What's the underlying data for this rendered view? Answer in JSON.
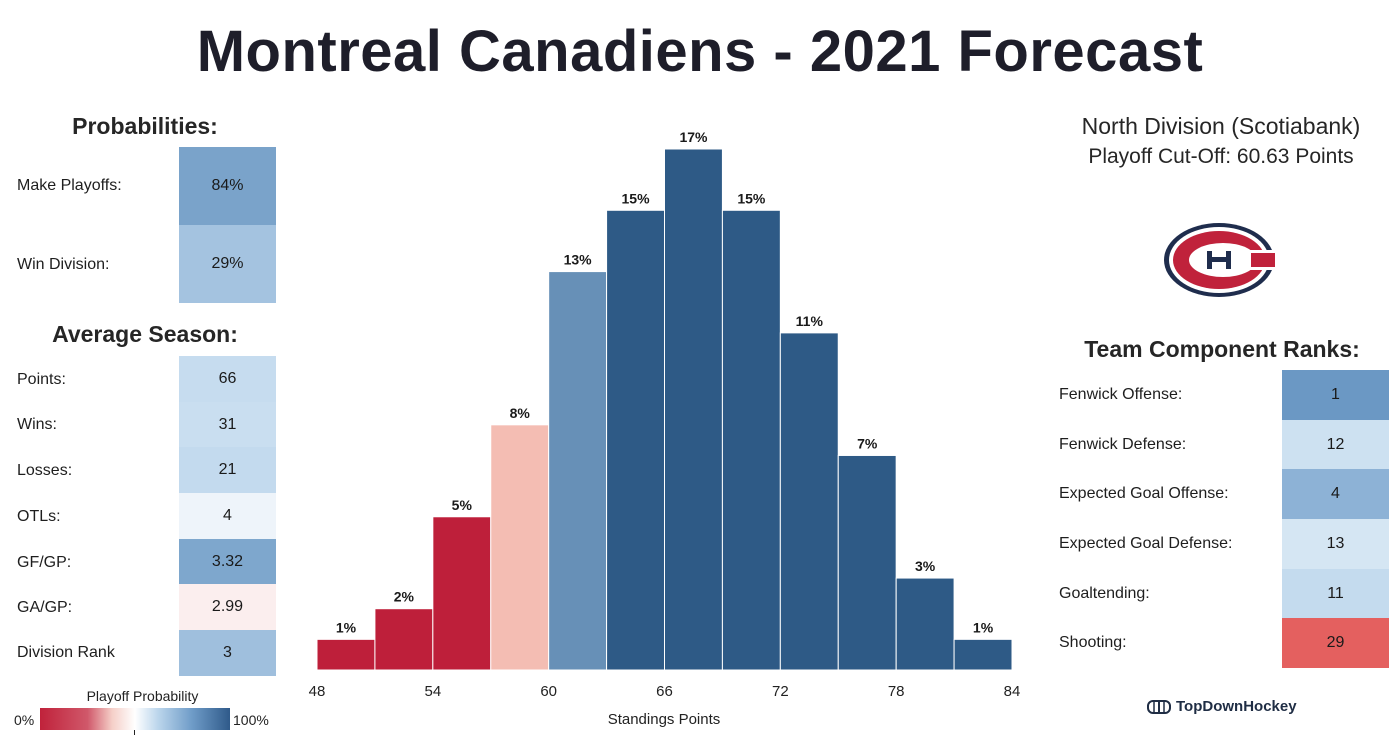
{
  "title": "Montreal Canadiens - 2021 Forecast",
  "probabilities": {
    "heading": "Probabilities:",
    "rows": [
      {
        "label": "Make Playoffs:",
        "value": "84%",
        "color": "#7aa3ca"
      },
      {
        "label": "Win Division:",
        "value": "29%",
        "color": "#a4c3e0"
      }
    ]
  },
  "average_season": {
    "heading": "Average Season:",
    "rows": [
      {
        "label": "Points:",
        "value": "66",
        "color": "#c6dcef"
      },
      {
        "label": "Wins:",
        "value": "31",
        "color": "#c9def0"
      },
      {
        "label": "Losses:",
        "value": "21",
        "color": "#c3daee"
      },
      {
        "label": "OTLs:",
        "value": "4",
        "color": "#eef4fa"
      },
      {
        "label": "GF/GP:",
        "value": "3.32",
        "color": "#7ea7cd"
      },
      {
        "label": "GA/GP:",
        "value": "2.99",
        "color": "#fbeeee"
      },
      {
        "label": "Division Rank",
        "value": "3",
        "color": "#9fbfdd"
      }
    ]
  },
  "legend": {
    "title": "Playoff Probability",
    "min_label": "0%",
    "max_label": "100%"
  },
  "division": {
    "name": "North Division (Scotiabank)",
    "cutoff": "Playoff Cut-Off: 60.63 Points"
  },
  "team_ranks": {
    "heading": "Team Component Ranks:",
    "rows": [
      {
        "label": "Fenwick Offense:",
        "value": "1",
        "color": "#6b98c4"
      },
      {
        "label": "Fenwick Defense:",
        "value": "12",
        "color": "#cde1f1"
      },
      {
        "label": "Expected Goal Offense:",
        "value": "4",
        "color": "#8db2d6"
      },
      {
        "label": "Expected Goal Defense:",
        "value": "13",
        "color": "#d5e6f3"
      },
      {
        "label": "Goaltending:",
        "value": "11",
        "color": "#c4dbee"
      },
      {
        "label": "Shooting:",
        "value": "29",
        "color": "#e4605f"
      }
    ]
  },
  "brand": "TopDownHockey",
  "chart_data": {
    "type": "bar",
    "title": "",
    "xlabel": "Standings Points",
    "ylabel": "",
    "bin_edges": [
      48,
      51,
      54,
      57,
      60,
      63,
      66,
      69,
      72,
      75,
      78,
      81,
      84
    ],
    "values": [
      1,
      2,
      5,
      8,
      13,
      15,
      17,
      15,
      11,
      7,
      3,
      1
    ],
    "labels": [
      "1%",
      "2%",
      "5%",
      "8%",
      "13%",
      "15%",
      "17%",
      "15%",
      "11%",
      "7%",
      "3%",
      "1%"
    ],
    "bar_colors": [
      "#be1f3a",
      "#be1f3a",
      "#be1f3a",
      "#f4bdb3",
      "#6790b7",
      "#2e5a86",
      "#2e5a86",
      "#2e5a86",
      "#2e5a86",
      "#2e5a86",
      "#2e5a86",
      "#2e5a86"
    ],
    "xticks": [
      "48",
      "54",
      "60",
      "66",
      "72",
      "78",
      "84"
    ],
    "xlim": [
      48,
      84
    ],
    "ylim": [
      0,
      17
    ],
    "grid": false
  }
}
